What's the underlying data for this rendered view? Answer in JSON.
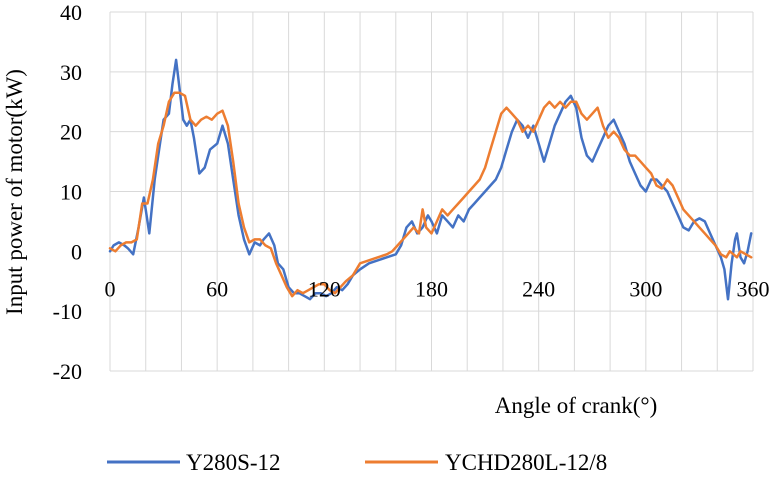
{
  "chart_data": {
    "type": "line",
    "xlabel": "Angle of crank(°)",
    "ylabel": "Input power of motor(kW)",
    "xlim": [
      0,
      360
    ],
    "ylim": [
      -20,
      40
    ],
    "x_ticks": [
      "0",
      "60",
      "120",
      "180",
      "240",
      "300",
      "360"
    ],
    "y_ticks": [
      "40",
      "30",
      "20",
      "10",
      "0",
      "-10",
      "-20"
    ],
    "grid": "vertical and horizontal",
    "legend_position": "bottom",
    "series": [
      {
        "name": "Y280S-12",
        "color": "#4472C4",
        "points": [
          [
            0,
            0
          ],
          [
            2,
            1
          ],
          [
            5,
            1.5
          ],
          [
            8,
            1
          ],
          [
            10,
            0.5
          ],
          [
            13,
            -0.5
          ],
          [
            16,
            4
          ],
          [
            19,
            9
          ],
          [
            22,
            3
          ],
          [
            25,
            12
          ],
          [
            28,
            18
          ],
          [
            30,
            22
          ],
          [
            33,
            23
          ],
          [
            35,
            28
          ],
          [
            37,
            32
          ],
          [
            39,
            27
          ],
          [
            41,
            22
          ],
          [
            43,
            21
          ],
          [
            45,
            22
          ],
          [
            47,
            19
          ],
          [
            50,
            13
          ],
          [
            53,
            14
          ],
          [
            56,
            17
          ],
          [
            60,
            18
          ],
          [
            63,
            21
          ],
          [
            66,
            18
          ],
          [
            69,
            12
          ],
          [
            72,
            6
          ],
          [
            75,
            2
          ],
          [
            78,
            -0.5
          ],
          [
            81,
            1.5
          ],
          [
            84,
            1
          ],
          [
            86,
            2
          ],
          [
            89,
            3
          ],
          [
            92,
            1
          ],
          [
            94,
            -2
          ],
          [
            97,
            -3
          ],
          [
            100,
            -6
          ],
          [
            103,
            -7
          ],
          [
            106,
            -7
          ],
          [
            109,
            -7.5
          ],
          [
            112,
            -8
          ],
          [
            115,
            -7
          ],
          [
            118,
            -7
          ],
          [
            121,
            -7.5
          ],
          [
            124,
            -7
          ],
          [
            127,
            -6
          ],
          [
            130,
            -6.5
          ],
          [
            133,
            -5.5
          ],
          [
            136,
            -4
          ],
          [
            140,
            -3
          ],
          [
            145,
            -2
          ],
          [
            150,
            -1.5
          ],
          [
            155,
            -1
          ],
          [
            160,
            -0.5
          ],
          [
            163,
            1
          ],
          [
            166,
            4
          ],
          [
            169,
            5
          ],
          [
            172,
            3
          ],
          [
            175,
            4
          ],
          [
            178,
            6
          ],
          [
            180,
            5
          ],
          [
            183,
            3
          ],
          [
            186,
            6
          ],
          [
            189,
            5
          ],
          [
            192,
            4
          ],
          [
            195,
            6
          ],
          [
            198,
            5
          ],
          [
            201,
            7
          ],
          [
            204,
            8
          ],
          [
            207,
            9
          ],
          [
            210,
            10
          ],
          [
            213,
            11
          ],
          [
            216,
            12
          ],
          [
            219,
            14
          ],
          [
            222,
            17
          ],
          [
            225,
            20
          ],
          [
            228,
            22
          ],
          [
            231,
            21
          ],
          [
            234,
            19
          ],
          [
            237,
            21
          ],
          [
            240,
            18
          ],
          [
            243,
            15
          ],
          [
            246,
            18
          ],
          [
            249,
            21
          ],
          [
            252,
            23
          ],
          [
            255,
            25
          ],
          [
            258,
            26
          ],
          [
            261,
            24
          ],
          [
            264,
            19
          ],
          [
            267,
            16
          ],
          [
            270,
            15
          ],
          [
            273,
            17
          ],
          [
            276,
            19
          ],
          [
            279,
            21
          ],
          [
            282,
            22
          ],
          [
            285,
            20
          ],
          [
            288,
            18
          ],
          [
            291,
            15
          ],
          [
            294,
            13
          ],
          [
            297,
            11
          ],
          [
            300,
            10
          ],
          [
            303,
            12
          ],
          [
            306,
            12
          ],
          [
            309,
            11
          ],
          [
            312,
            10
          ],
          [
            315,
            8
          ],
          [
            318,
            6
          ],
          [
            321,
            4
          ],
          [
            324,
            3.5
          ],
          [
            327,
            5
          ],
          [
            330,
            5.5
          ],
          [
            333,
            5
          ],
          [
            336,
            3
          ],
          [
            339,
            1
          ],
          [
            342,
            -1
          ],
          [
            344,
            -3
          ],
          [
            346,
            -8
          ],
          [
            348,
            -2
          ],
          [
            350,
            2
          ],
          [
            351,
            3
          ],
          [
            353,
            -1
          ],
          [
            355,
            -2
          ],
          [
            357,
            0
          ],
          [
            359,
            3
          ]
        ]
      },
      {
        "name": "YCHD280L-12/8",
        "color": "#ED7D31",
        "points": [
          [
            0,
            0.5
          ],
          [
            3,
            0
          ],
          [
            6,
            1
          ],
          [
            9,
            1.5
          ],
          [
            12,
            1.5
          ],
          [
            15,
            2
          ],
          [
            18,
            8
          ],
          [
            21,
            8
          ],
          [
            24,
            12
          ],
          [
            27,
            18
          ],
          [
            30,
            21
          ],
          [
            33,
            25
          ],
          [
            36,
            26.5
          ],
          [
            39,
            26.5
          ],
          [
            42,
            26
          ],
          [
            45,
            22
          ],
          [
            48,
            21
          ],
          [
            51,
            22
          ],
          [
            54,
            22.5
          ],
          [
            57,
            22
          ],
          [
            60,
            23
          ],
          [
            63,
            23.5
          ],
          [
            66,
            21
          ],
          [
            69,
            15
          ],
          [
            72,
            8
          ],
          [
            75,
            4
          ],
          [
            78,
            1.5
          ],
          [
            81,
            2
          ],
          [
            84,
            2
          ],
          [
            87,
            1
          ],
          [
            90,
            0.5
          ],
          [
            93,
            -2
          ],
          [
            96,
            -4
          ],
          [
            99,
            -6
          ],
          [
            102,
            -7.5
          ],
          [
            105,
            -6.5
          ],
          [
            108,
            -7
          ],
          [
            111,
            -6.5
          ],
          [
            114,
            -6
          ],
          [
            117,
            -5.5
          ],
          [
            120,
            -5.5
          ],
          [
            123,
            -6.5
          ],
          [
            126,
            -7
          ],
          [
            129,
            -6
          ],
          [
            132,
            -5
          ],
          [
            136,
            -4
          ],
          [
            140,
            -2
          ],
          [
            145,
            -1.5
          ],
          [
            150,
            -1
          ],
          [
            155,
            -0.5
          ],
          [
            158,
            0
          ],
          [
            161,
            1
          ],
          [
            164,
            2
          ],
          [
            167,
            3
          ],
          [
            170,
            4
          ],
          [
            173,
            3
          ],
          [
            175,
            7
          ],
          [
            177,
            4
          ],
          [
            180,
            3
          ],
          [
            183,
            5
          ],
          [
            186,
            7
          ],
          [
            189,
            6
          ],
          [
            192,
            7
          ],
          [
            195,
            8
          ],
          [
            198,
            9
          ],
          [
            201,
            10
          ],
          [
            204,
            11
          ],
          [
            207,
            12
          ],
          [
            210,
            14
          ],
          [
            213,
            17
          ],
          [
            216,
            20
          ],
          [
            219,
            23
          ],
          [
            222,
            24
          ],
          [
            225,
            23
          ],
          [
            228,
            22
          ],
          [
            231,
            20
          ],
          [
            234,
            21
          ],
          [
            237,
            20
          ],
          [
            240,
            22
          ],
          [
            243,
            24
          ],
          [
            246,
            25
          ],
          [
            249,
            24
          ],
          [
            252,
            25
          ],
          [
            255,
            24
          ],
          [
            258,
            25
          ],
          [
            261,
            25
          ],
          [
            264,
            23
          ],
          [
            267,
            22
          ],
          [
            270,
            23
          ],
          [
            273,
            24
          ],
          [
            276,
            21
          ],
          [
            279,
            19
          ],
          [
            282,
            20
          ],
          [
            285,
            19
          ],
          [
            288,
            17
          ],
          [
            291,
            16
          ],
          [
            294,
            16
          ],
          [
            297,
            15
          ],
          [
            300,
            14
          ],
          [
            303,
            13
          ],
          [
            306,
            11
          ],
          [
            309,
            10.5
          ],
          [
            312,
            12
          ],
          [
            315,
            11
          ],
          [
            318,
            9
          ],
          [
            321,
            7
          ],
          [
            324,
            6
          ],
          [
            327,
            5
          ],
          [
            330,
            4
          ],
          [
            333,
            3
          ],
          [
            336,
            2
          ],
          [
            339,
            1
          ],
          [
            342,
            -0.5
          ],
          [
            345,
            -1
          ],
          [
            347,
            0
          ],
          [
            349,
            -0.5
          ],
          [
            351,
            -1
          ],
          [
            353,
            0
          ],
          [
            356,
            -0.5
          ],
          [
            359,
            -1
          ]
        ]
      }
    ]
  }
}
